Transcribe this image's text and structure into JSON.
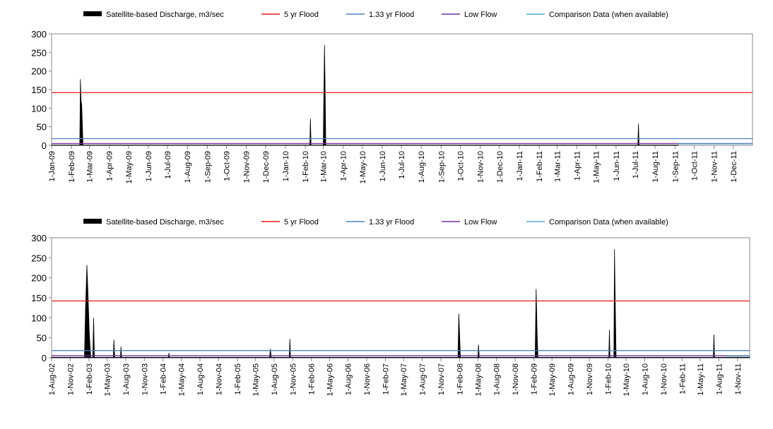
{
  "legend": [
    {
      "label": "Satellite-based Discharge, m3/sec",
      "color": "#000000",
      "kind": "area"
    },
    {
      "label": "5 yr Flood",
      "color": "#e41a1c",
      "kind": "line"
    },
    {
      "label": "1.33 yr Flood",
      "color": "#4f81bd",
      "kind": "line"
    },
    {
      "label": "Low Flow",
      "color": "#7030a0",
      "kind": "line"
    },
    {
      "label": "Comparison Data (when available)",
      "color": "#4bacc6",
      "kind": "line"
    }
  ],
  "chart_data": [
    {
      "type": "area",
      "title": "",
      "xlabel": "",
      "ylabel": "",
      "ylim": [
        0,
        300
      ],
      "yticks": [
        0,
        50,
        100,
        150,
        200,
        250,
        300
      ],
      "grid": false,
      "legend_position": "top",
      "xlim": [
        "2009-01-01",
        "2011-12-31"
      ],
      "xtick_labels": [
        "1-Jan-09",
        "1-Feb-09",
        "1-Mar-09",
        "1-Apr-09",
        "1-May-09",
        "1-Jun-09",
        "1-Jul-09",
        "1-Aug-09",
        "1-Sep-09",
        "1-Oct-09",
        "1-Nov-09",
        "1-Dec-09",
        "1-Jan-10",
        "1-Feb-10",
        "1-Mar-10",
        "1-Apr-10",
        "1-May-10",
        "1-Jun-10",
        "1-Jul-10",
        "1-Aug-10",
        "1-Sep-10",
        "1-Oct-10",
        "1-Nov-10",
        "1-Dec-10",
        "1-Jan-11",
        "1-Feb-11",
        "1-Mar-11",
        "1-Apr-11",
        "1-May-11",
        "1-Jun-11",
        "1-Jul-11",
        "1-Aug-11",
        "1-Sep-11",
        "1-Oct-11",
        "1-Nov-11",
        "1-Dec-11"
      ],
      "xtick_dates": [
        "2009-01-01",
        "2009-02-01",
        "2009-03-01",
        "2009-04-01",
        "2009-05-01",
        "2009-06-01",
        "2009-07-01",
        "2009-08-01",
        "2009-09-01",
        "2009-10-01",
        "2009-11-01",
        "2009-12-01",
        "2010-01-01",
        "2010-02-01",
        "2010-03-01",
        "2010-04-01",
        "2010-05-01",
        "2010-06-01",
        "2010-07-01",
        "2010-08-01",
        "2010-09-01",
        "2010-10-01",
        "2010-11-01",
        "2010-12-01",
        "2011-01-01",
        "2011-02-01",
        "2011-03-01",
        "2011-04-01",
        "2011-05-01",
        "2011-06-01",
        "2011-07-01",
        "2011-08-01",
        "2011-09-01",
        "2011-10-01",
        "2011-11-01",
        "2011-12-01"
      ],
      "series": [
        {
          "name": "Satellite-based Discharge, m3/sec",
          "kind": "area",
          "color": "#000000",
          "points": [
            [
              "2009-01-01",
              1
            ],
            [
              "2009-02-14",
              1
            ],
            [
              "2009-02-15",
              178
            ],
            [
              "2009-02-16",
              120
            ],
            [
              "2009-02-17",
              110
            ],
            [
              "2009-02-18",
              60
            ],
            [
              "2009-02-19",
              1
            ],
            [
              "2010-02-08",
              1
            ],
            [
              "2010-02-09",
              72
            ],
            [
              "2010-02-10",
              1
            ],
            [
              "2010-03-01",
              1
            ],
            [
              "2010-03-02",
              140
            ],
            [
              "2010-03-03",
              270
            ],
            [
              "2010-03-04",
              150
            ],
            [
              "2010-03-05",
              1
            ],
            [
              "2011-07-05",
              1
            ],
            [
              "2011-07-06",
              58
            ],
            [
              "2011-07-07",
              1
            ],
            [
              "2011-09-06",
              1
            ]
          ]
        },
        {
          "name": "5 yr Flood",
          "kind": "hline",
          "color": "#e41a1c",
          "value": 142
        },
        {
          "name": "1.33 yr Flood",
          "kind": "hline",
          "color": "#4f81bd",
          "value": 18
        },
        {
          "name": "Low Flow",
          "kind": "hline",
          "color": "#7030a0",
          "value": 5
        },
        {
          "name": "Comparison Data (when available)",
          "kind": "line",
          "color": "#4bacc6",
          "points": [
            [
              "2011-09-06",
              4
            ],
            [
              "2011-12-31",
              4
            ]
          ]
        }
      ]
    },
    {
      "type": "area",
      "title": "",
      "xlabel": "",
      "ylabel": "",
      "ylim": [
        0,
        300
      ],
      "yticks": [
        0,
        50,
        100,
        150,
        200,
        250,
        300
      ],
      "grid": false,
      "legend_position": "top",
      "xlim": [
        "2002-08-01",
        "2011-12-31"
      ],
      "xtick_labels": [
        "1-Aug-02",
        "1-Nov-02",
        "1-Feb-03",
        "1-May-03",
        "1-Aug-03",
        "1-Nov-03",
        "1-Feb-04",
        "1-May-04",
        "1-Aug-04",
        "1-Nov-04",
        "1-Feb-05",
        "1-May-05",
        "1-Aug-05",
        "1-Nov-05",
        "1-Feb-06",
        "1-May-06",
        "1-Aug-06",
        "1-Nov-06",
        "1-Feb-07",
        "1-May-07",
        "1-Aug-07",
        "1-Nov-07",
        "1-Feb-08",
        "1-May-08",
        "1-Aug-08",
        "1-Nov-08",
        "1-Feb-09",
        "1-May-09",
        "1-Aug-09",
        "1-Nov-09",
        "1-Feb-10",
        "1-May-10",
        "1-Aug-10",
        "1-Nov-10",
        "1-Feb-11",
        "1-May-11",
        "1-Aug-11",
        "1-Nov-11"
      ],
      "xtick_dates": [
        "2002-08-01",
        "2002-11-01",
        "2003-02-01",
        "2003-05-01",
        "2003-08-01",
        "2003-11-01",
        "2004-02-01",
        "2004-05-01",
        "2004-08-01",
        "2004-11-01",
        "2005-02-01",
        "2005-05-01",
        "2005-08-01",
        "2005-11-01",
        "2006-02-01",
        "2006-05-01",
        "2006-08-01",
        "2006-11-01",
        "2007-02-01",
        "2007-05-01",
        "2007-08-01",
        "2007-11-01",
        "2008-02-01",
        "2008-05-01",
        "2008-08-01",
        "2008-11-01",
        "2009-02-01",
        "2009-05-01",
        "2009-08-01",
        "2009-11-01",
        "2010-02-01",
        "2010-05-01",
        "2010-08-01",
        "2010-11-01",
        "2011-02-01",
        "2011-05-01",
        "2011-08-01",
        "2011-11-01"
      ],
      "series": [
        {
          "name": "Satellite-based Discharge, m3/sec",
          "kind": "area",
          "color": "#000000",
          "points": [
            [
              "2002-08-01",
              1
            ],
            [
              "2003-01-10",
              1
            ],
            [
              "2003-01-15",
              120
            ],
            [
              "2003-01-22",
              232
            ],
            [
              "2003-01-28",
              150
            ],
            [
              "2003-02-03",
              60
            ],
            [
              "2003-02-10",
              1
            ],
            [
              "2003-02-20",
              1
            ],
            [
              "2003-02-24",
              100
            ],
            [
              "2003-02-28",
              1
            ],
            [
              "2003-06-01",
              1
            ],
            [
              "2003-06-04",
              45
            ],
            [
              "2003-06-08",
              1
            ],
            [
              "2003-07-06",
              1
            ],
            [
              "2003-07-09",
              28
            ],
            [
              "2003-07-12",
              1
            ],
            [
              "2004-02-27",
              1
            ],
            [
              "2004-03-01",
              12
            ],
            [
              "2004-03-04",
              1
            ],
            [
              "2005-07-10",
              1
            ],
            [
              "2005-07-14",
              22
            ],
            [
              "2005-07-18",
              1
            ],
            [
              "2005-10-15",
              1
            ],
            [
              "2005-10-18",
              47
            ],
            [
              "2005-10-21",
              1
            ],
            [
              "2008-01-24",
              1
            ],
            [
              "2008-01-28",
              110
            ],
            [
              "2008-02-01",
              60
            ],
            [
              "2008-02-05",
              1
            ],
            [
              "2008-05-01",
              1
            ],
            [
              "2008-05-04",
              33
            ],
            [
              "2008-05-08",
              1
            ],
            [
              "2009-02-07",
              1
            ],
            [
              "2009-02-12",
              172
            ],
            [
              "2009-02-17",
              60
            ],
            [
              "2009-02-21",
              1
            ],
            [
              "2010-02-05",
              1
            ],
            [
              "2010-02-08",
              70
            ],
            [
              "2010-02-11",
              1
            ],
            [
              "2010-03-02",
              1
            ],
            [
              "2010-03-05",
              272
            ],
            [
              "2010-03-09",
              130
            ],
            [
              "2010-03-13",
              1
            ],
            [
              "2011-07-05",
              1
            ],
            [
              "2011-07-08",
              58
            ],
            [
              "2011-07-11",
              1
            ],
            [
              "2011-12-31",
              1
            ]
          ]
        },
        {
          "name": "5 yr Flood",
          "kind": "hline",
          "color": "#e41a1c",
          "value": 142
        },
        {
          "name": "1.33 yr Flood",
          "kind": "hline",
          "color": "#4f81bd",
          "value": 18
        },
        {
          "name": "Low Flow",
          "kind": "hline",
          "color": "#7030a0",
          "value": 5
        },
        {
          "name": "Comparison Data (when available)",
          "kind": "line",
          "color": "#4bacc6",
          "points": [
            [
              "2011-09-06",
              4
            ],
            [
              "2011-12-31",
              4
            ]
          ]
        }
      ]
    }
  ]
}
